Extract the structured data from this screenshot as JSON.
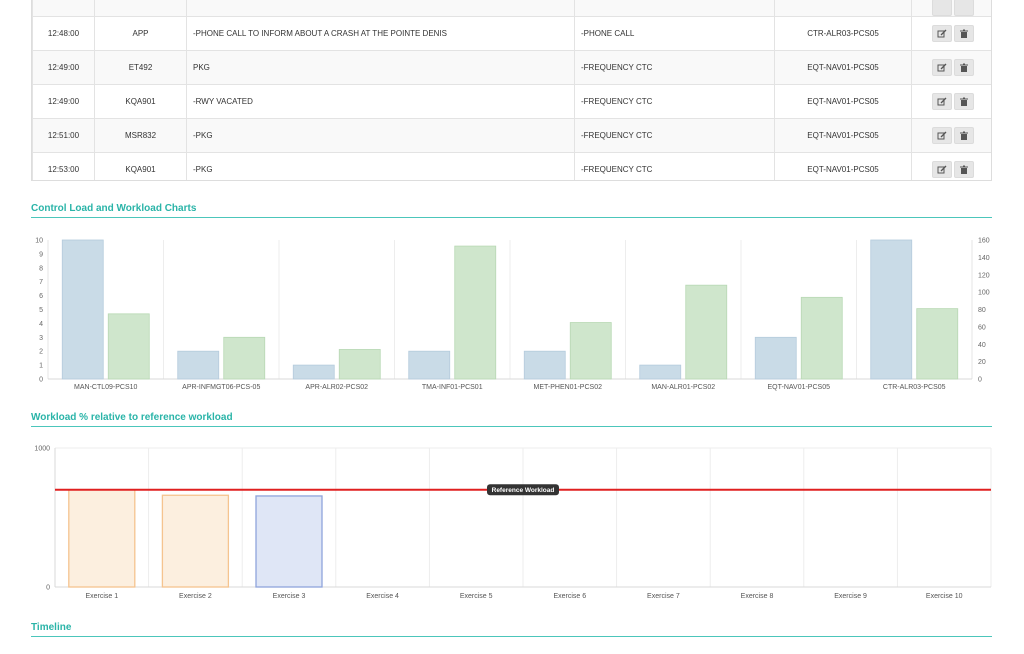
{
  "log_table": {
    "rows": [
      {
        "time": "12:48:00",
        "unit": "APP",
        "message": "-PHONE CALL TO INFORM ABOUT A CRASH AT THE POINTE DENIS",
        "category": "-PHONE CALL",
        "position": "CTR-ALR03-PCS05"
      },
      {
        "time": "12:49:00",
        "unit": "ET492",
        "message": "PKG",
        "category": "-FREQUENCY CTC",
        "position": "EQT-NAV01-PCS05"
      },
      {
        "time": "12:49:00",
        "unit": "KQA901",
        "message": "-RWY VACATED",
        "category": "-FREQUENCY CTC",
        "position": "EQT-NAV01-PCS05"
      },
      {
        "time": "12:51:00",
        "unit": "MSR832",
        "message": "-PKG",
        "category": "-FREQUENCY CTC",
        "position": "EQT-NAV01-PCS05"
      },
      {
        "time": "12:53:00",
        "unit": "KQA901",
        "message": "-PKG",
        "category": "-FREQUENCY CTC",
        "position": "EQT-NAV01-PCS05"
      }
    ],
    "edit_icon": "edit-icon",
    "delete_icon": "trash-icon"
  },
  "sections": {
    "control_load": "Control Load and Workload Charts",
    "workload_pct": "Workload % relative to reference workload",
    "timeline": "Timeline"
  },
  "chart_data": [
    {
      "type": "bar",
      "categories": [
        "MAN-CTL09-PCS10",
        "APR-INFMGT06-PCS-05",
        "APR-ALR02-PCS02",
        "TMA-INF01-PCS01",
        "MET-PHEN01-PCS02",
        "MAN-ALR01-PCS02",
        "EQT-NAV01-PCS05",
        "CTR-ALR03-PCS05"
      ],
      "series": [
        {
          "axis": "left",
          "color": "#c9dbe7",
          "stroke": "#b4cbdc",
          "values": [
            10,
            2,
            1,
            2,
            2,
            1,
            3,
            10
          ]
        },
        {
          "axis": "right",
          "color": "#cfe6cc",
          "stroke": "#b7d8b3",
          "values": [
            75,
            48,
            34,
            153,
            65,
            108,
            94,
            81
          ]
        }
      ],
      "ylim_left": [
        0,
        10
      ],
      "yticks_left": [
        0,
        1,
        2,
        3,
        4,
        5,
        6,
        7,
        8,
        9,
        10
      ],
      "ylim_right": [
        0,
        160
      ],
      "yticks_right": [
        0,
        20,
        40,
        60,
        80,
        100,
        120,
        140,
        160
      ],
      "grid": true
    },
    {
      "type": "bar",
      "categories": [
        "Exercise 1",
        "Exercise 2",
        "Exercise 3",
        "Exercise 4",
        "Exercise 5",
        "Exercise 6",
        "Exercise 7",
        "Exercise 8",
        "Exercise 9",
        "Exercise 10"
      ],
      "series": [
        {
          "values": [
            700,
            660,
            655,
            null,
            null,
            null,
            null,
            null,
            null,
            null
          ]
        }
      ],
      "bar_colors": [
        "#fcefdf",
        "#fcefdf",
        "#dfe6f6"
      ],
      "bar_strokes": [
        "#f5c48f",
        "#f5c48f",
        "#8fa4dc"
      ],
      "ylim": [
        0,
        1000
      ],
      "yticks": [
        0,
        1000
      ],
      "reference_line": {
        "label": "Reference Workload",
        "value": 700,
        "color": "#e02020"
      },
      "grid": true
    }
  ]
}
